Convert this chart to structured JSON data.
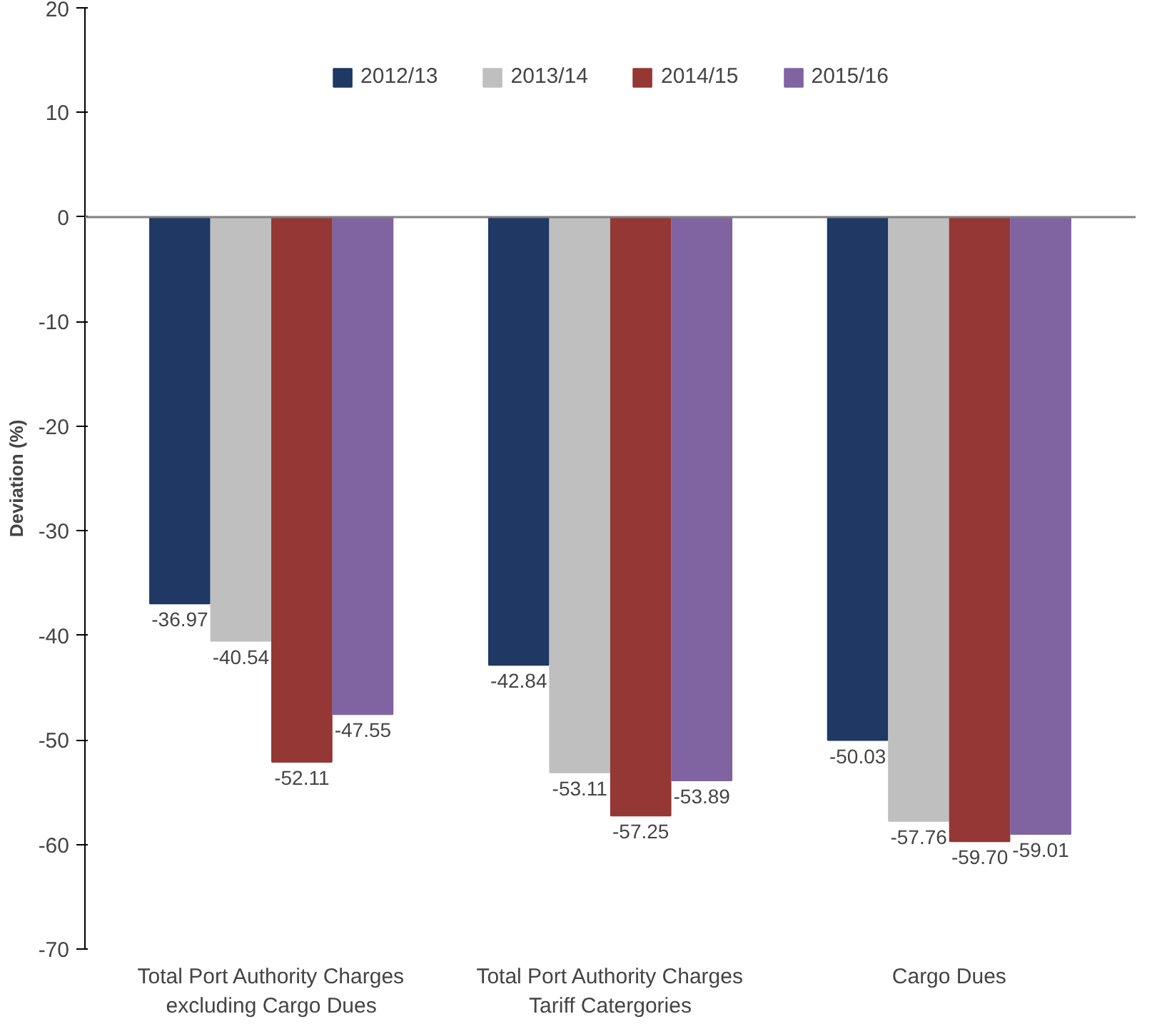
{
  "chart_data": {
    "type": "bar",
    "ylabel": "Deviation (%)",
    "categories": [
      "Total Port Authority Charges\nexcluding Cargo Dues",
      "Total Port Authority Charges\nTariff Catergories",
      "Cargo Dues"
    ],
    "series": [
      {
        "name": "2012/13",
        "color": "#1f3864",
        "values": [
          -36.97,
          -42.84,
          -50.03
        ],
        "value_labels": [
          "-36.97",
          "-42.84",
          "-50.03"
        ]
      },
      {
        "name": "2013/14",
        "color": "#bfbfbf",
        "values": [
          -40.54,
          -53.11,
          -57.76
        ],
        "value_labels": [
          "-40.54",
          "-53.11",
          "-57.76"
        ]
      },
      {
        "name": "2014/15",
        "color": "#953735",
        "values": [
          -52.11,
          -57.25,
          -59.7
        ],
        "value_labels": [
          "-52.11",
          "-57.25",
          "-59.70"
        ]
      },
      {
        "name": "2015/16",
        "color": "#8064a2",
        "values": [
          -47.55,
          -53.89,
          -59.01
        ],
        "value_labels": [
          "-47.55",
          "-53.89",
          "-59.01"
        ]
      }
    ],
    "ylim": [
      -70,
      20
    ],
    "yticks": [
      -70,
      -60,
      -50,
      -40,
      -30,
      -20,
      -10,
      0,
      10,
      20
    ],
    "legend": "top"
  }
}
